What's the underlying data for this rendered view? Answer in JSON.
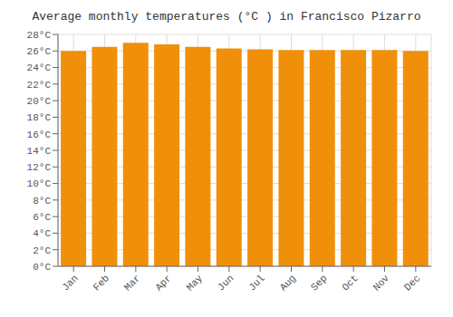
{
  "chart_data": {
    "type": "bar",
    "title": "Average monthly temperatures (°C ) in Francisco Pizarro",
    "categories": [
      "Jan",
      "Feb",
      "Mar",
      "Apr",
      "May",
      "Jun",
      "Jul",
      "Aug",
      "Sep",
      "Oct",
      "Nov",
      "Dec"
    ],
    "values": [
      26.0,
      26.5,
      27.0,
      26.8,
      26.5,
      26.3,
      26.2,
      26.1,
      26.1,
      26.1,
      26.1,
      26.0
    ],
    "color": "#F0900A",
    "ylim": [
      0,
      28
    ],
    "yticks": [
      {
        "value": 0,
        "label": "0°C"
      },
      {
        "value": 2,
        "label": "2°C"
      },
      {
        "value": 4,
        "label": "4°C"
      },
      {
        "value": 6,
        "label": "6°C"
      },
      {
        "value": 8,
        "label": "8°C"
      },
      {
        "value": 10,
        "label": "10°C"
      },
      {
        "value": 12,
        "label": "12°C"
      },
      {
        "value": 14,
        "label": "14°C"
      },
      {
        "value": 16,
        "label": "16°C"
      },
      {
        "value": 18,
        "label": "18°C"
      },
      {
        "value": 20,
        "label": "20°C"
      },
      {
        "value": 22,
        "label": "22°C"
      },
      {
        "value": 24,
        "label": "24°C"
      },
      {
        "value": 26,
        "label": "26°C"
      },
      {
        "value": 28,
        "label": "28°C"
      }
    ],
    "grid": true
  }
}
